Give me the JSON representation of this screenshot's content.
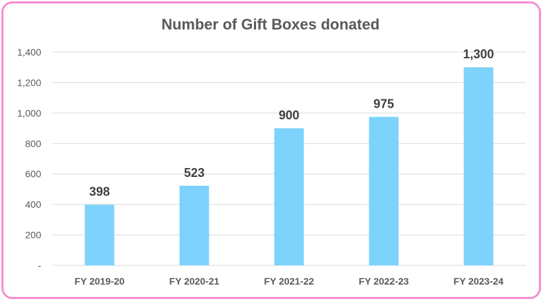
{
  "chart_data": {
    "type": "bar",
    "title": "Number of Gift Boxes donated",
    "xlabel": "",
    "ylabel": "",
    "categories": [
      "FY 2019-20",
      "FY 2020-21",
      "FY 2021-22",
      "FY 2022-23",
      "FY 2023-24"
    ],
    "values": [
      398,
      523,
      900,
      975,
      1300
    ],
    "data_labels": [
      "398",
      "523",
      "900",
      "975",
      "1,300"
    ],
    "ylim": [
      0,
      1400
    ],
    "yticks": [
      0,
      200,
      400,
      600,
      800,
      1000,
      1200,
      1400
    ],
    "ytick_labels": [
      "-",
      "200",
      "400",
      "600",
      "800",
      "1,000",
      "1,200",
      "1,400"
    ],
    "grid": true,
    "legend": "none",
    "colors": {
      "bar": "#7dd3fc",
      "border": "#f58fd2",
      "grid": "#d9d9d9",
      "text": "#595959",
      "label": "#404040"
    }
  }
}
